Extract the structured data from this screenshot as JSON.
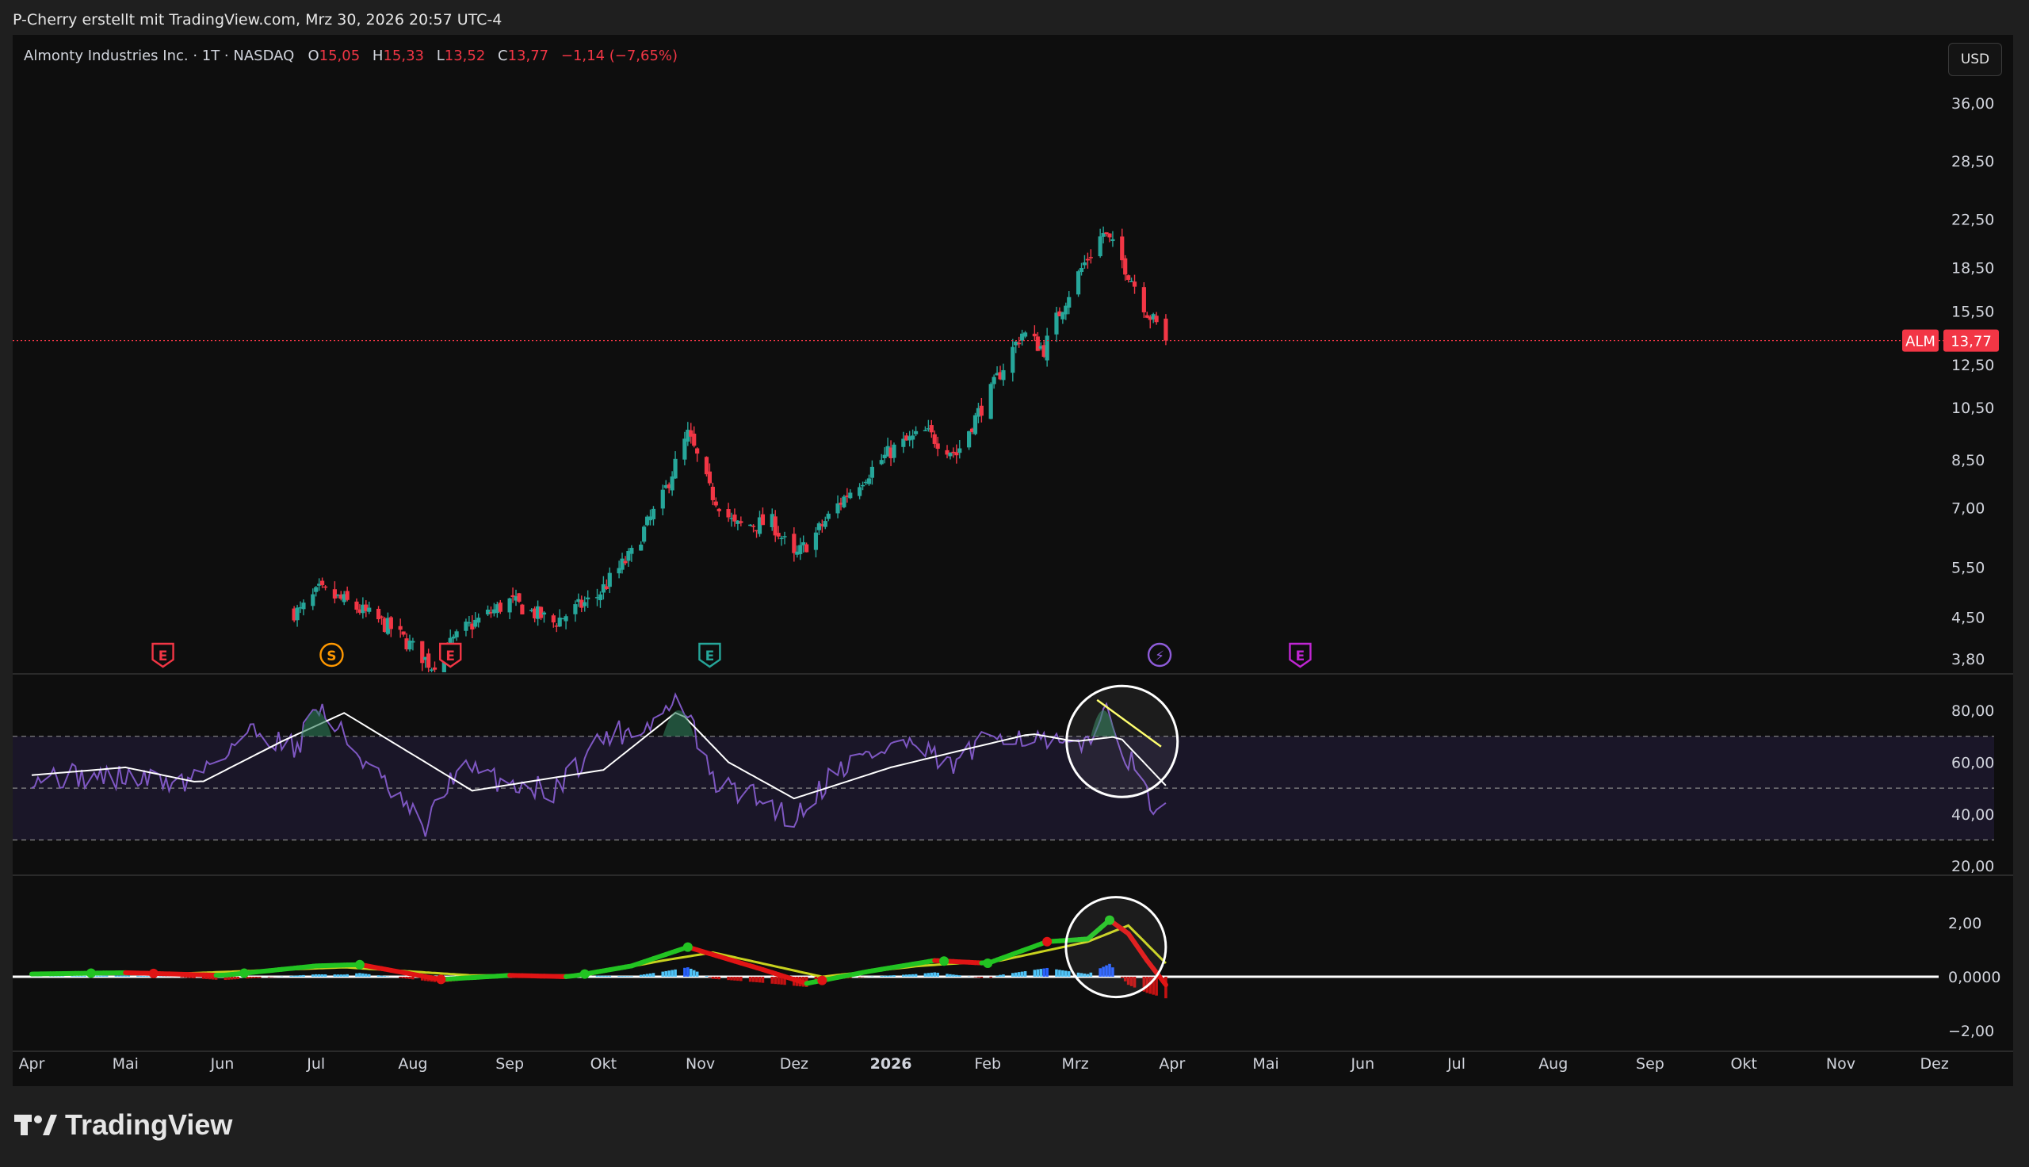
{
  "header": {
    "attribution": "P-Cherry erstellt mit TradingView.com, Mrz 30, 2026 20:57 UTC-4"
  },
  "symbol": {
    "description": "Almonty Industries Inc. · 1T · NASDAQ",
    "open_label": "O",
    "open": "15,05",
    "high_label": "H",
    "high": "15,33",
    "low_label": "L",
    "low": "13,52",
    "close_label": "C",
    "close": "13,77",
    "change": "−1,14 (−7,65%)",
    "ticker": "ALM",
    "last_price_label": "13,77",
    "currency": "USD"
  },
  "colors": {
    "up": "#26a69a",
    "down": "#f23645",
    "rsi": "#7e57c2",
    "rsi_ma": "#ffffff",
    "macd_up": "#22c322",
    "macd_down": "#e01414",
    "signal": "#c8d21e",
    "annotation": "#ffff66"
  },
  "footer": {
    "brand": "TradingView",
    "logo_icon": "tradingview-logo-icon"
  },
  "chart_data": [
    {
      "type": "candlestick",
      "title": "Almonty Industries Inc.",
      "y_scale": "log",
      "y_ticks": [
        "36,00",
        "28,50",
        "22,50",
        "18,50",
        "15,50",
        "12,50",
        "10,50",
        "8,50",
        "7,00",
        "5,50",
        "4,50",
        "3,80"
      ],
      "y_tick_values": [
        36,
        28.5,
        22.5,
        18.5,
        15.5,
        12.5,
        10.5,
        8.5,
        7,
        5.5,
        4.5,
        3.8
      ],
      "x_ticks": [
        "Apr",
        "Mai",
        "Jun",
        "Jul",
        "Aug",
        "Sep",
        "Okt",
        "Nov",
        "Dez",
        "2026",
        "Feb",
        "Mrz",
        "Apr",
        "Mai",
        "Jun",
        "Jul",
        "Aug",
        "Sep",
        "Okt",
        "Nov",
        "Dez"
      ],
      "close_anchors": [
        {
          "date": "2025-06-26",
          "value": 4.6
        },
        {
          "date": "2025-07-02",
          "value": 5.0
        },
        {
          "date": "2025-07-10",
          "value": 4.8
        },
        {
          "date": "2025-07-25",
          "value": 4.3
        },
        {
          "date": "2025-08-07",
          "value": 3.7
        },
        {
          "date": "2025-08-18",
          "value": 4.3
        },
        {
          "date": "2025-09-01",
          "value": 4.8
        },
        {
          "date": "2025-09-15",
          "value": 4.4
        },
        {
          "date": "2025-09-29",
          "value": 4.9
        },
        {
          "date": "2025-10-10",
          "value": 5.8
        },
        {
          "date": "2025-10-20",
          "value": 7.3
        },
        {
          "date": "2025-10-28",
          "value": 9.4
        },
        {
          "date": "2025-11-04",
          "value": 7.5
        },
        {
          "date": "2025-11-12",
          "value": 6.5
        },
        {
          "date": "2025-11-24",
          "value": 6.6
        },
        {
          "date": "2025-12-01",
          "value": 5.7
        },
        {
          "date": "2025-12-08",
          "value": 6.3
        },
        {
          "date": "2025-12-18",
          "value": 7.4
        },
        {
          "date": "2026-01-02",
          "value": 8.9
        },
        {
          "date": "2026-01-12",
          "value": 9.5
        },
        {
          "date": "2026-01-22",
          "value": 8.7
        },
        {
          "date": "2026-02-02",
          "value": 11.2
        },
        {
          "date": "2026-02-12",
          "value": 14.2
        },
        {
          "date": "2026-02-19",
          "value": 13.3
        },
        {
          "date": "2026-03-02",
          "value": 18.0
        },
        {
          "date": "2026-03-10",
          "value": 21.3
        },
        {
          "date": "2026-03-16",
          "value": 19.0
        },
        {
          "date": "2026-03-24",
          "value": 15.5
        },
        {
          "date": "2026-03-30",
          "value": 13.77
        }
      ],
      "last": 13.77,
      "events": [
        {
          "date": "2025-05-13",
          "label": "E",
          "kind": "earnings-down"
        },
        {
          "date": "2025-07-06",
          "label": "S",
          "kind": "split"
        },
        {
          "date": "2025-08-13",
          "label": "E",
          "kind": "earnings-down"
        },
        {
          "date": "2025-11-04",
          "label": "E",
          "kind": "earnings-up"
        },
        {
          "date": "2026-03-28",
          "label": "⚡",
          "kind": "news"
        },
        {
          "date": "2026-05-12",
          "label": "E",
          "kind": "earnings-upcoming"
        }
      ]
    },
    {
      "type": "line",
      "title": "",
      "y_ticks": [
        "80,00",
        "60,00",
        "40,00",
        "20,00"
      ],
      "y_tick_values": [
        80,
        60,
        40,
        20
      ],
      "bands": [
        70,
        50,
        30
      ],
      "rsi_anchors": [
        {
          "date": "2025-04-01",
          "value": 55
        },
        {
          "date": "2025-05-01",
          "value": 54
        },
        {
          "date": "2025-05-20",
          "value": 52
        },
        {
          "date": "2025-06-10",
          "value": 72
        },
        {
          "date": "2025-06-25",
          "value": 66
        },
        {
          "date": "2025-07-01",
          "value": 82
        },
        {
          "date": "2025-07-10",
          "value": 70
        },
        {
          "date": "2025-07-25",
          "value": 48
        },
        {
          "date": "2025-08-05",
          "value": 34
        },
        {
          "date": "2025-08-15",
          "value": 58
        },
        {
          "date": "2025-09-01",
          "value": 52
        },
        {
          "date": "2025-09-15",
          "value": 49
        },
        {
          "date": "2025-10-01",
          "value": 70
        },
        {
          "date": "2025-10-15",
          "value": 74
        },
        {
          "date": "2025-10-26",
          "value": 85
        },
        {
          "date": "2025-11-05",
          "value": 52
        },
        {
          "date": "2025-11-20",
          "value": 46
        },
        {
          "date": "2025-12-01",
          "value": 38
        },
        {
          "date": "2025-12-15",
          "value": 58
        },
        {
          "date": "2026-01-05",
          "value": 68
        },
        {
          "date": "2026-01-20",
          "value": 58
        },
        {
          "date": "2026-02-05",
          "value": 72
        },
        {
          "date": "2026-02-18",
          "value": 68
        },
        {
          "date": "2026-03-02",
          "value": 64
        },
        {
          "date": "2026-03-10",
          "value": 80
        },
        {
          "date": "2026-03-18",
          "value": 62
        },
        {
          "date": "2026-03-24",
          "value": 46
        },
        {
          "date": "2026-03-30",
          "value": 40
        }
      ],
      "ma_anchors": [
        {
          "date": "2025-04-01",
          "value": 55
        },
        {
          "date": "2025-05-01",
          "value": 58
        },
        {
          "date": "2025-05-25",
          "value": 52
        },
        {
          "date": "2025-06-20",
          "value": 68
        },
        {
          "date": "2025-07-10",
          "value": 79
        },
        {
          "date": "2025-08-05",
          "value": 60
        },
        {
          "date": "2025-08-20",
          "value": 49
        },
        {
          "date": "2025-09-15",
          "value": 54
        },
        {
          "date": "2025-10-01",
          "value": 57
        },
        {
          "date": "2025-10-25",
          "value": 80
        },
        {
          "date": "2025-11-10",
          "value": 60
        },
        {
          "date": "2025-12-01",
          "value": 46
        },
        {
          "date": "2026-01-01",
          "value": 58
        },
        {
          "date": "2026-01-25",
          "value": 65
        },
        {
          "date": "2026-02-15",
          "value": 71
        },
        {
          "date": "2026-03-01",
          "value": 68
        },
        {
          "date": "2026-03-15",
          "value": 70
        },
        {
          "date": "2026-03-30",
          "value": 51
        }
      ],
      "annotation": {
        "from_date": "2026-03-08",
        "from_value": 84,
        "to_date": "2026-03-30",
        "to_value": 66
      }
    },
    {
      "type": "line",
      "title": "",
      "y_ticks": [
        "2,00",
        "0,0000",
        "−2,00"
      ],
      "y_tick_values": [
        2,
        0,
        -2
      ],
      "macd_anchors": [
        {
          "date": "2025-04-01",
          "value": 0.1
        },
        {
          "date": "2025-05-01",
          "value": 0.15
        },
        {
          "date": "2025-06-01",
          "value": 0.05
        },
        {
          "date": "2025-07-01",
          "value": 0.4
        },
        {
          "date": "2025-07-15",
          "value": 0.45
        },
        {
          "date": "2025-08-10",
          "value": -0.1
        },
        {
          "date": "2025-09-01",
          "value": 0.05
        },
        {
          "date": "2025-09-20",
          "value": 0.0
        },
        {
          "date": "2025-10-10",
          "value": 0.4
        },
        {
          "date": "2025-10-28",
          "value": 1.1
        },
        {
          "date": "2025-11-20",
          "value": 0.3
        },
        {
          "date": "2025-12-05",
          "value": -0.25
        },
        {
          "date": "2025-12-25",
          "value": 0.2
        },
        {
          "date": "2026-01-15",
          "value": 0.6
        },
        {
          "date": "2026-02-01",
          "value": 0.5
        },
        {
          "date": "2026-02-20",
          "value": 1.3
        },
        {
          "date": "2026-03-05",
          "value": 1.4
        },
        {
          "date": "2026-03-12",
          "value": 2.1
        },
        {
          "date": "2026-03-18",
          "value": 1.6
        },
        {
          "date": "2026-03-24",
          "value": 0.6
        },
        {
          "date": "2026-03-30",
          "value": -0.3
        }
      ],
      "signal_anchors": [
        {
          "date": "2025-04-01",
          "value": 0.1
        },
        {
          "date": "2025-05-15",
          "value": 0.1
        },
        {
          "date": "2025-07-10",
          "value": 0.35
        },
        {
          "date": "2025-08-20",
          "value": 0.05
        },
        {
          "date": "2025-09-25",
          "value": 0.05
        },
        {
          "date": "2025-10-20",
          "value": 0.6
        },
        {
          "date": "2025-11-05",
          "value": 0.9
        },
        {
          "date": "2025-12-10",
          "value": 0.0
        },
        {
          "date": "2026-01-10",
          "value": 0.4
        },
        {
          "date": "2026-02-05",
          "value": 0.6
        },
        {
          "date": "2026-03-05",
          "value": 1.3
        },
        {
          "date": "2026-03-18",
          "value": 1.9
        },
        {
          "date": "2026-03-30",
          "value": 0.5
        }
      ]
    }
  ]
}
